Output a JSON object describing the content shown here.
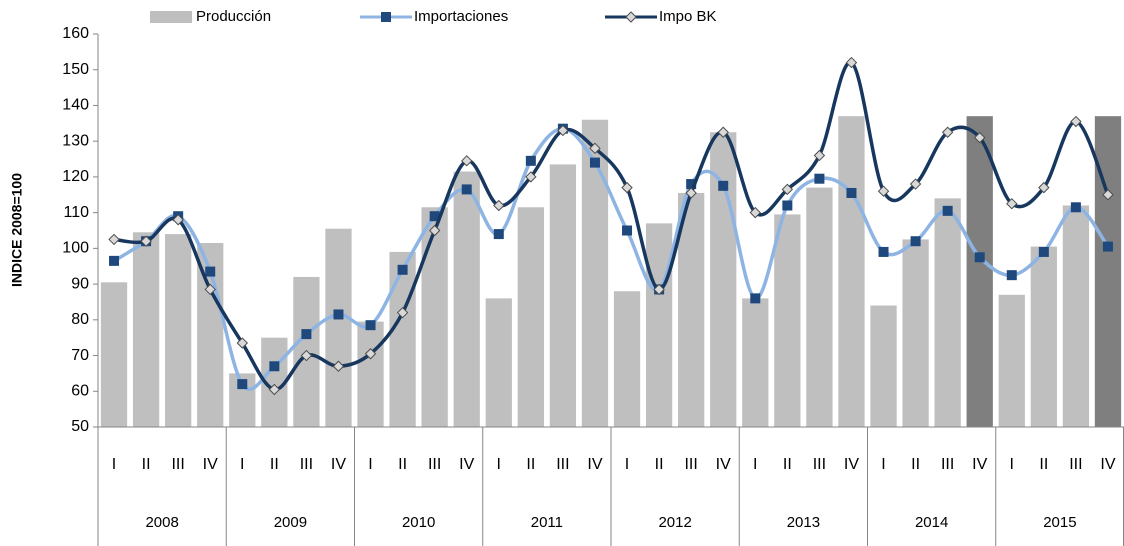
{
  "chart_data": {
    "type": "bar-line",
    "y_label": "INDICE 2008=100",
    "categories": [
      "I",
      "II",
      "III",
      "IV",
      "I",
      "II",
      "III",
      "IV",
      "I",
      "II",
      "III",
      "IV",
      "I",
      "II",
      "III",
      "IV",
      "I",
      "II",
      "III",
      "IV",
      "I",
      "II",
      "III",
      "IV",
      "I",
      "II",
      "III",
      "IV",
      "I",
      "II",
      "III",
      "IV"
    ],
    "years": [
      "2008",
      "2009",
      "2010",
      "2011",
      "2012",
      "2013",
      "2014",
      "2015"
    ],
    "ylim": [
      50,
      160
    ],
    "yticks": [
      50,
      60,
      70,
      80,
      90,
      100,
      110,
      120,
      130,
      140,
      150,
      160
    ],
    "legend": "top",
    "smooth": true,
    "series": [
      {
        "name": "Producción",
        "type": "bar",
        "color": "#bfbfbf",
        "colors": [
          "#bfbfbf",
          "#bfbfbf",
          "#bfbfbf",
          "#bfbfbf",
          "#bfbfbf",
          "#bfbfbf",
          "#bfbfbf",
          "#bfbfbf",
          "#bfbfbf",
          "#bfbfbf",
          "#bfbfbf",
          "#bfbfbf",
          "#bfbfbf",
          "#bfbfbf",
          "#bfbfbf",
          "#bfbfbf",
          "#bfbfbf",
          "#bfbfbf",
          "#bfbfbf",
          "#bfbfbf",
          "#bfbfbf",
          "#bfbfbf",
          "#bfbfbf",
          "#bfbfbf",
          "#bfbfbf",
          "#bfbfbf",
          "#bfbfbf",
          "#7f7f7f",
          "#bfbfbf",
          "#bfbfbf",
          "#bfbfbf",
          "#7f7f7f"
        ],
        "values": [
          90.5,
          104.5,
          104,
          101.5,
          65,
          75,
          92,
          105.5,
          79.5,
          99,
          111.5,
          121.5,
          86,
          111.5,
          123.5,
          136,
          88,
          107,
          115.5,
          132.5,
          86,
          109.5,
          117,
          137,
          84,
          102.5,
          114,
          137,
          87,
          100.5,
          112,
          137
        ]
      },
      {
        "name": "Importaciones",
        "type": "line",
        "color": "#8eb4e3",
        "marker": "square",
        "marker_color": "#1f497d",
        "values": [
          96.5,
          102,
          109,
          93.5,
          62,
          67,
          76,
          81.5,
          78.5,
          94,
          109,
          116.5,
          104,
          124.5,
          133.5,
          124,
          105,
          88.5,
          118,
          117.5,
          86,
          112,
          119.5,
          115.5,
          99,
          102,
          110.5,
          97.5,
          92.5,
          99,
          111.5,
          100.5
        ]
      },
      {
        "name": "Impo BK",
        "type": "line",
        "color": "#17375e",
        "marker": "diamond",
        "marker_color": "#d9d9d9",
        "values": [
          102.5,
          102,
          108,
          88.5,
          73.5,
          60.5,
          70,
          67,
          70.5,
          82,
          105,
          124.5,
          112,
          120,
          133,
          128,
          117,
          88.5,
          115.5,
          132.5,
          110,
          116.5,
          126,
          152,
          116,
          118,
          132.5,
          131,
          112.5,
          117,
          135.5,
          115
        ]
      }
    ]
  }
}
